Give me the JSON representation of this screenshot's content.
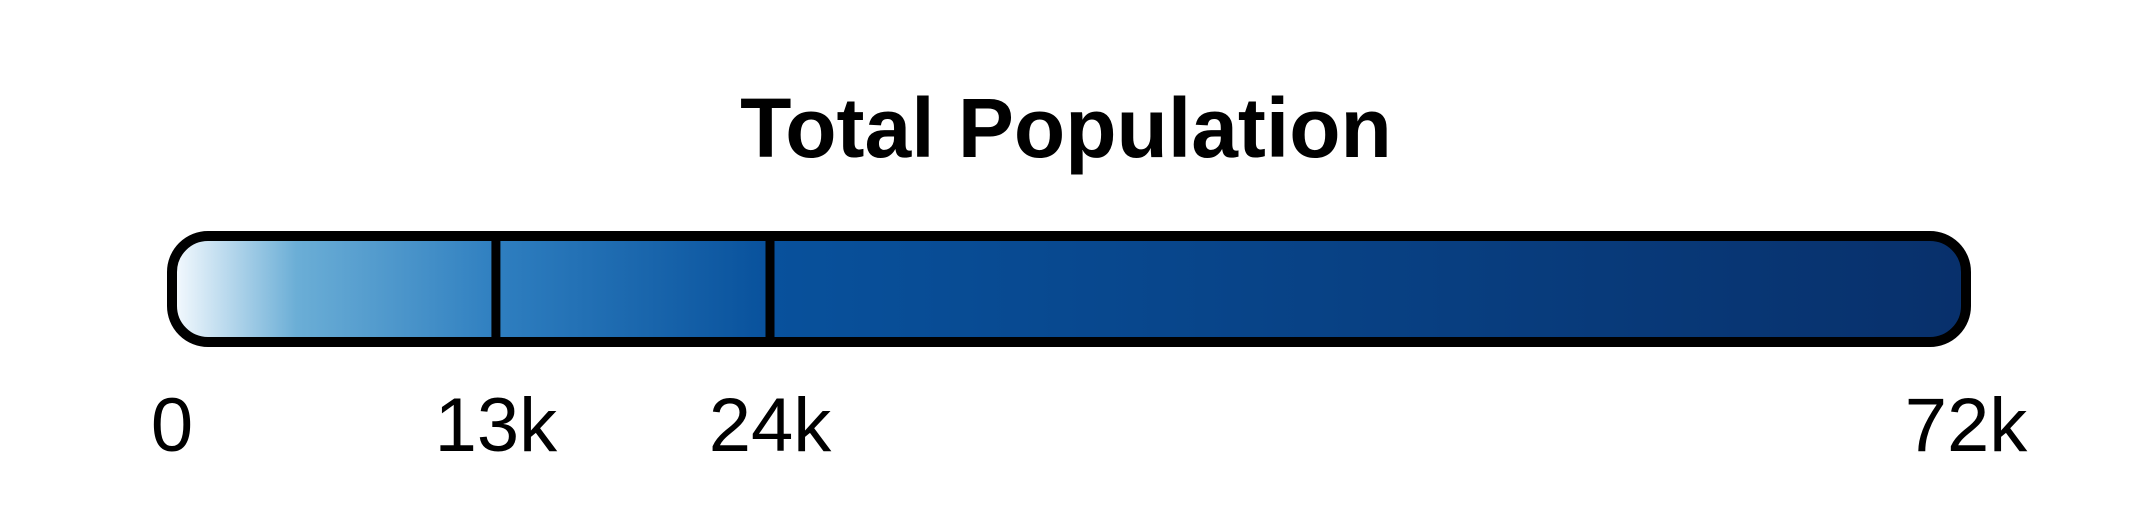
{
  "chart_data": {
    "type": "color-legend",
    "title": "Total Population",
    "domain": [
      0,
      72000
    ],
    "breaks": [
      13000,
      24000
    ],
    "tick_values": [
      0,
      13000,
      24000,
      72000
    ],
    "tick_labels": [
      "0",
      "13k",
      "24k",
      "72k"
    ],
    "color_stops": [
      {
        "value": 0,
        "color": "#f7fbff"
      },
      {
        "value": 5000,
        "color": "#6baed6"
      },
      {
        "value": 13000,
        "color": "#2f7fc0"
      },
      {
        "value": 24000,
        "color": "#08519c"
      },
      {
        "value": 72000,
        "color": "#08306b"
      }
    ],
    "outline_color": "#000000"
  }
}
